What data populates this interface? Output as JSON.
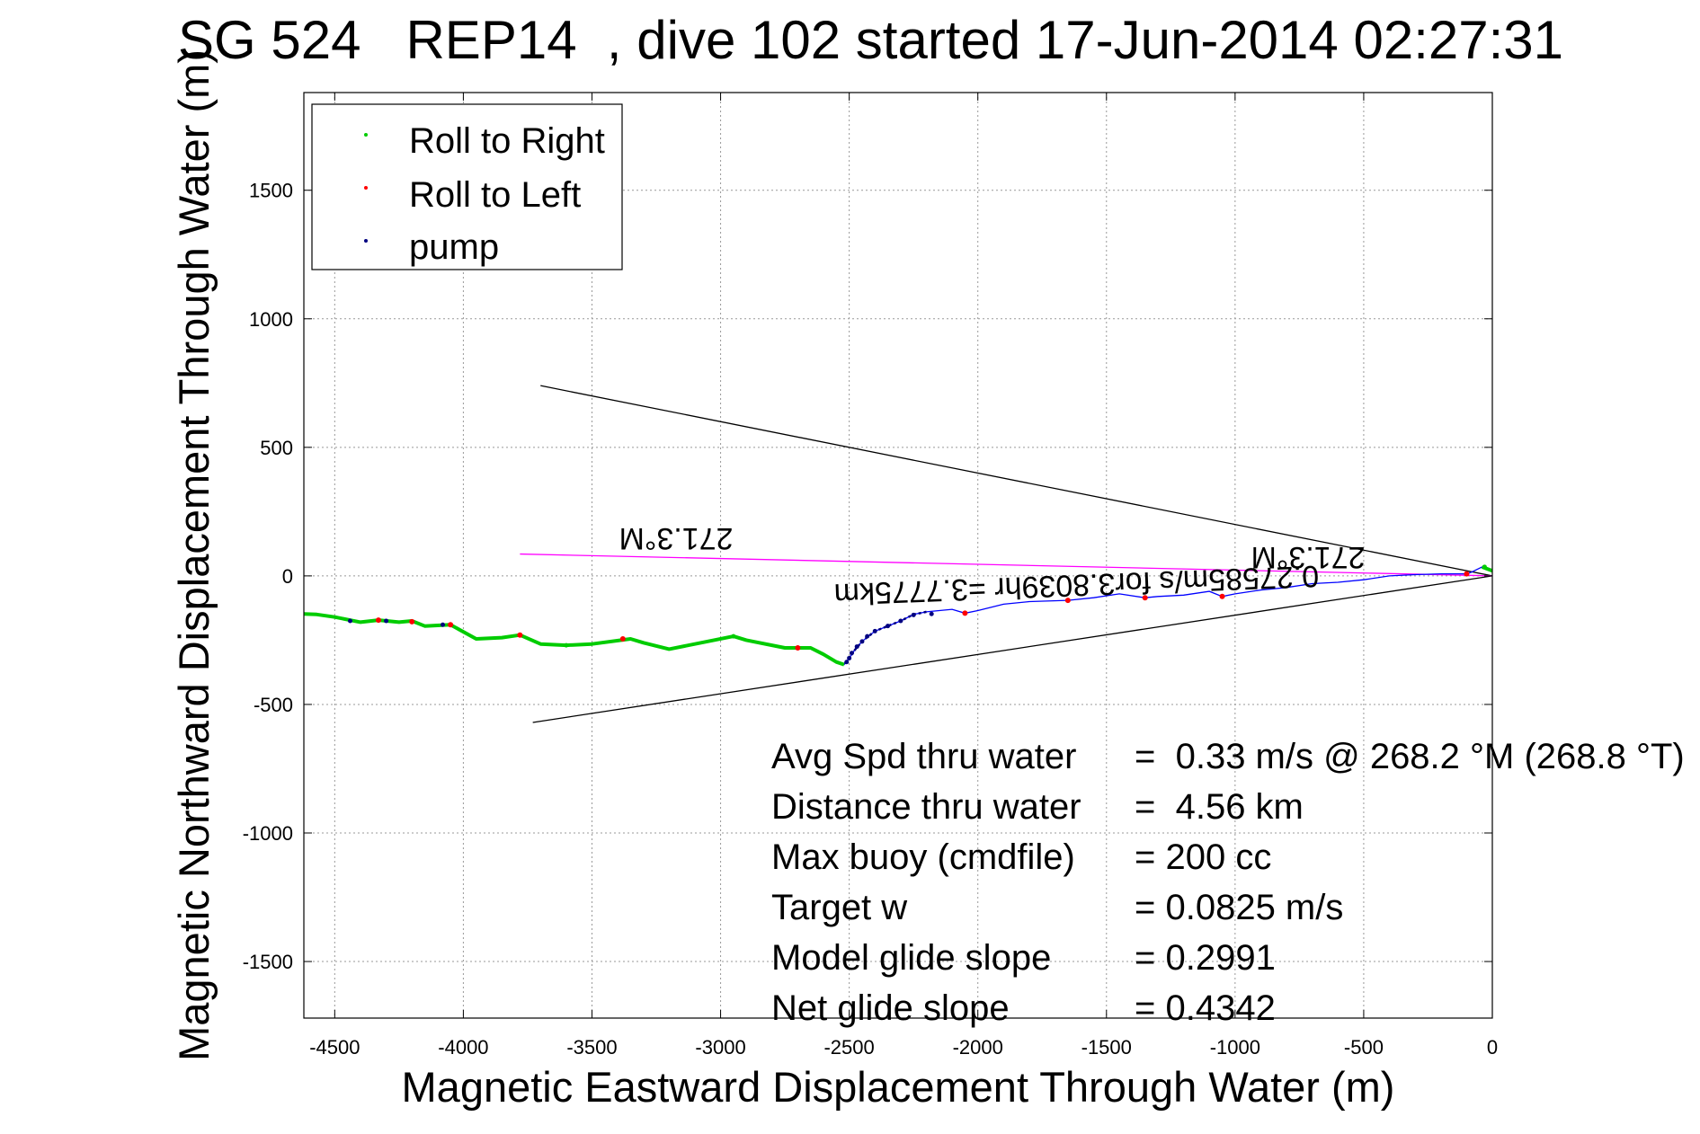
{
  "chart_data": {
    "type": "line",
    "title": "SG 524   REP14  , dive 102 started 17-Jun-2014 02:27:31",
    "xlabel": "Magnetic Eastward Displacement Through Water (m)",
    "ylabel": "Magnetic Northward Displacement Through Water (m)",
    "xlim": [
      -4620,
      0
    ],
    "ylim": [
      -1720,
      1880
    ],
    "x_ticks": [
      -4500,
      -4000,
      -3500,
      -3000,
      -2500,
      -2000,
      -1500,
      -1000,
      -500,
      0
    ],
    "x_tick_labels": [
      "-4500",
      "-4000",
      "-3500",
      "-3000",
      "-2500",
      "-2000",
      "-1500",
      "-1000",
      "-500",
      "0"
    ],
    "y_ticks": [
      -1500,
      -1000,
      -500,
      0,
      500,
      1000,
      1500
    ],
    "y_tick_labels": [
      "-1500",
      "-1000",
      "-500",
      "0",
      "500",
      "1000",
      "1500"
    ],
    "grid": true,
    "legend": {
      "placement": "top-left",
      "entries": [
        {
          "label": "Roll to Right",
          "color": "#00cc00"
        },
        {
          "label": "Roll to Left",
          "color": "#ff0000"
        },
        {
          "label": "pump",
          "color": "#000080"
        }
      ]
    },
    "track": {
      "name": "dive track",
      "color": "#0000ff",
      "points": [
        [
          0,
          20
        ],
        [
          -40,
          35
        ],
        [
          -80,
          15
        ],
        [
          -100,
          8
        ],
        [
          -200,
          8
        ],
        [
          -300,
          5
        ],
        [
          -400,
          0
        ],
        [
          -500,
          -15
        ],
        [
          -600,
          -25
        ],
        [
          -700,
          -30
        ],
        [
          -800,
          -45
        ],
        [
          -900,
          -55
        ],
        [
          -1000,
          -70
        ],
        [
          -1050,
          -80
        ],
        [
          -1100,
          -60
        ],
        [
          -1200,
          -75
        ],
        [
          -1300,
          -80
        ],
        [
          -1350,
          -85
        ],
        [
          -1450,
          -70
        ],
        [
          -1550,
          -85
        ],
        [
          -1650,
          -95
        ],
        [
          -1800,
          -100
        ],
        [
          -1900,
          -110
        ],
        [
          -2000,
          -135
        ],
        [
          -2050,
          -145
        ],
        [
          -2100,
          -130
        ],
        [
          -2200,
          -140
        ],
        [
          -2250,
          -150
        ],
        [
          -2300,
          -175
        ],
        [
          -2400,
          -215
        ],
        [
          -2450,
          -255
        ],
        [
          -2480,
          -290
        ],
        [
          -2500,
          -320
        ],
        [
          -2520,
          -345
        ],
        [
          -2550,
          -335
        ],
        [
          -2600,
          -305
        ],
        [
          -2650,
          -280
        ],
        [
          -2750,
          -280
        ],
        [
          -2900,
          -250
        ],
        [
          -2950,
          -235
        ],
        [
          -3050,
          -255
        ],
        [
          -3200,
          -285
        ],
        [
          -3300,
          -260
        ],
        [
          -3350,
          -245
        ],
        [
          -3500,
          -265
        ],
        [
          -3600,
          -270
        ],
        [
          -3700,
          -265
        ],
        [
          -3780,
          -230
        ],
        [
          -3850,
          -240
        ],
        [
          -3950,
          -245
        ],
        [
          -4050,
          -190
        ],
        [
          -4150,
          -195
        ],
        [
          -4200,
          -175
        ],
        [
          -4250,
          -180
        ],
        [
          -4330,
          -172
        ],
        [
          -4400,
          -180
        ],
        [
          -4500,
          -160
        ],
        [
          -4570,
          -150
        ],
        [
          -4620,
          -148
        ]
      ]
    },
    "green_segments": [
      [
        -2520,
        -4620
      ],
      [
        -40,
        0
      ]
    ],
    "pump_segment": [
      -2180,
      -2520
    ],
    "pump_points": [
      [
        -2180,
        -148
      ],
      [
        -2250,
        -152
      ],
      [
        -2300,
        -175
      ],
      [
        -2350,
        -195
      ],
      [
        -2400,
        -215
      ],
      [
        -2430,
        -235
      ],
      [
        -2450,
        -255
      ],
      [
        -2470,
        -275
      ],
      [
        -2490,
        -300
      ],
      [
        -2500,
        -320
      ],
      [
        -2510,
        -335
      ],
      [
        -4300,
        -175
      ],
      [
        -4440,
        -175
      ],
      [
        -4080,
        -190
      ]
    ],
    "left_roll_points": [
      [
        -100,
        8
      ],
      [
        -1050,
        -80
      ],
      [
        -1350,
        -85
      ],
      [
        -1650,
        -95
      ],
      [
        -2050,
        -145
      ],
      [
        -2700,
        -280
      ],
      [
        -3380,
        -245
      ],
      [
        -3780,
        -230
      ],
      [
        -4050,
        -190
      ],
      [
        -4330,
        -172
      ],
      [
        -4200,
        -178
      ]
    ],
    "right_roll_points": [
      [
        -30,
        35
      ],
      [
        -2950,
        -235
      ],
      [
        -3600,
        -270
      ]
    ],
    "lines": [
      {
        "name": "upper-bound",
        "color": "#000000",
        "from": [
          0,
          0
        ],
        "to": [
          -3700,
          740
        ]
      },
      {
        "name": "lower-bound",
        "color": "#000000",
        "from": [
          0,
          0
        ],
        "to": [
          -3730,
          -570
        ]
      },
      {
        "name": "heading-line",
        "color": "#ff00ff",
        "from": [
          0,
          0
        ],
        "to": [
          -3780,
          85
        ]
      }
    ],
    "annotations": {
      "heading_far": "271.3°M",
      "heading_near": "271.3°M",
      "speed": "0.27585m/s for3.8039hr =3.7775km"
    },
    "stats": [
      {
        "label": "Avg Spd thru water",
        "value": "=  0.33 m/s @ 268.2 °M (268.8 °T)"
      },
      {
        "label": "Distance thru water",
        "value": "=  4.56 km"
      },
      {
        "label": "Max buoy (cmdfile)",
        "value": "= 200 cc"
      },
      {
        "label": "Target w",
        "value": "= 0.0825 m/s"
      },
      {
        "label": "Model glide slope",
        "value": "= 0.2991"
      },
      {
        "label": "Net glide slope",
        "value": "= 0.4342"
      }
    ]
  }
}
